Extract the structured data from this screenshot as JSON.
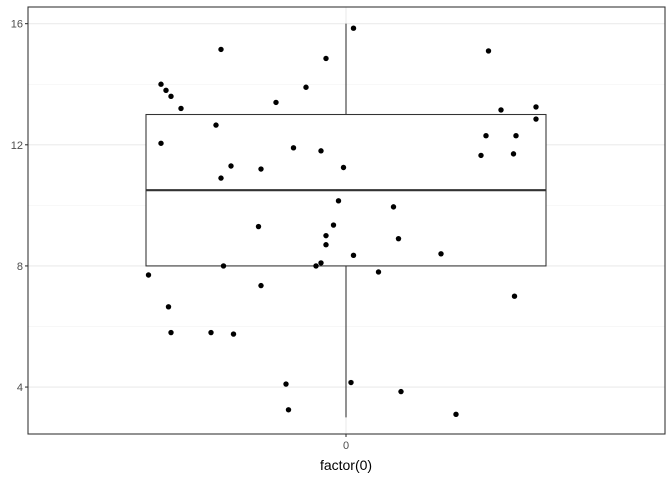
{
  "chart_data": {
    "type": "box",
    "xlabel": "factor(0)",
    "ylabel": "",
    "title": "",
    "categories": [
      "0"
    ],
    "ylim": [
      2.45,
      16.55
    ],
    "y_ticks": [
      4,
      8,
      12,
      16
    ],
    "y_tick_labels": [
      "4",
      "8",
      "12",
      "16"
    ],
    "x_tick_labels": [
      "0"
    ],
    "grid": true,
    "box": {
      "min": 3.0,
      "q1": 8.0,
      "median": 10.5,
      "q3": 13.0,
      "max": 16.0
    },
    "jitter_points": [
      {
        "x": -0.37,
        "y": 14.0
      },
      {
        "x": -0.36,
        "y": 13.8
      },
      {
        "x": -0.35,
        "y": 13.6
      },
      {
        "x": -0.33,
        "y": 13.2
      },
      {
        "x": -0.37,
        "y": 12.05
      },
      {
        "x": -0.395,
        "y": 7.7
      },
      {
        "x": -0.355,
        "y": 6.65
      },
      {
        "x": -0.35,
        "y": 5.8
      },
      {
        "x": -0.25,
        "y": 15.15
      },
      {
        "x": -0.26,
        "y": 12.65
      },
      {
        "x": -0.23,
        "y": 11.3
      },
      {
        "x": -0.25,
        "y": 10.9
      },
      {
        "x": -0.245,
        "y": 8.0
      },
      {
        "x": -0.27,
        "y": 5.8
      },
      {
        "x": -0.225,
        "y": 5.75
      },
      {
        "x": -0.175,
        "y": 9.3
      },
      {
        "x": -0.17,
        "y": 11.2
      },
      {
        "x": -0.17,
        "y": 7.35
      },
      {
        "x": -0.14,
        "y": 13.4
      },
      {
        "x": -0.12,
        "y": 4.1
      },
      {
        "x": -0.115,
        "y": 3.25
      },
      {
        "x": -0.105,
        "y": 11.9
      },
      {
        "x": -0.08,
        "y": 13.9
      },
      {
        "x": -0.06,
        "y": 8.0
      },
      {
        "x": -0.05,
        "y": 8.1
      },
      {
        "x": -0.05,
        "y": 11.8
      },
      {
        "x": -0.04,
        "y": 8.7
      },
      {
        "x": -0.04,
        "y": 9.0
      },
      {
        "x": -0.025,
        "y": 9.35
      },
      {
        "x": -0.04,
        "y": 14.85
      },
      {
        "x": -0.015,
        "y": 10.15
      },
      {
        "x": -0.005,
        "y": 11.25
      },
      {
        "x": 0.015,
        "y": 15.85
      },
      {
        "x": 0.015,
        "y": 8.35
      },
      {
        "x": 0.01,
        "y": 4.15
      },
      {
        "x": 0.065,
        "y": 7.8
      },
      {
        "x": 0.095,
        "y": 9.95
      },
      {
        "x": 0.105,
        "y": 8.9
      },
      {
        "x": 0.11,
        "y": 3.85
      },
      {
        "x": 0.19,
        "y": 8.4
      },
      {
        "x": 0.22,
        "y": 3.1
      },
      {
        "x": 0.27,
        "y": 11.65
      },
      {
        "x": 0.28,
        "y": 12.3
      },
      {
        "x": 0.285,
        "y": 15.1
      },
      {
        "x": 0.31,
        "y": 13.15
      },
      {
        "x": 0.335,
        "y": 11.7
      },
      {
        "x": 0.34,
        "y": 12.3
      },
      {
        "x": 0.337,
        "y": 7.0
      },
      {
        "x": 0.38,
        "y": 13.25
      },
      {
        "x": 0.38,
        "y": 12.85
      }
    ]
  }
}
